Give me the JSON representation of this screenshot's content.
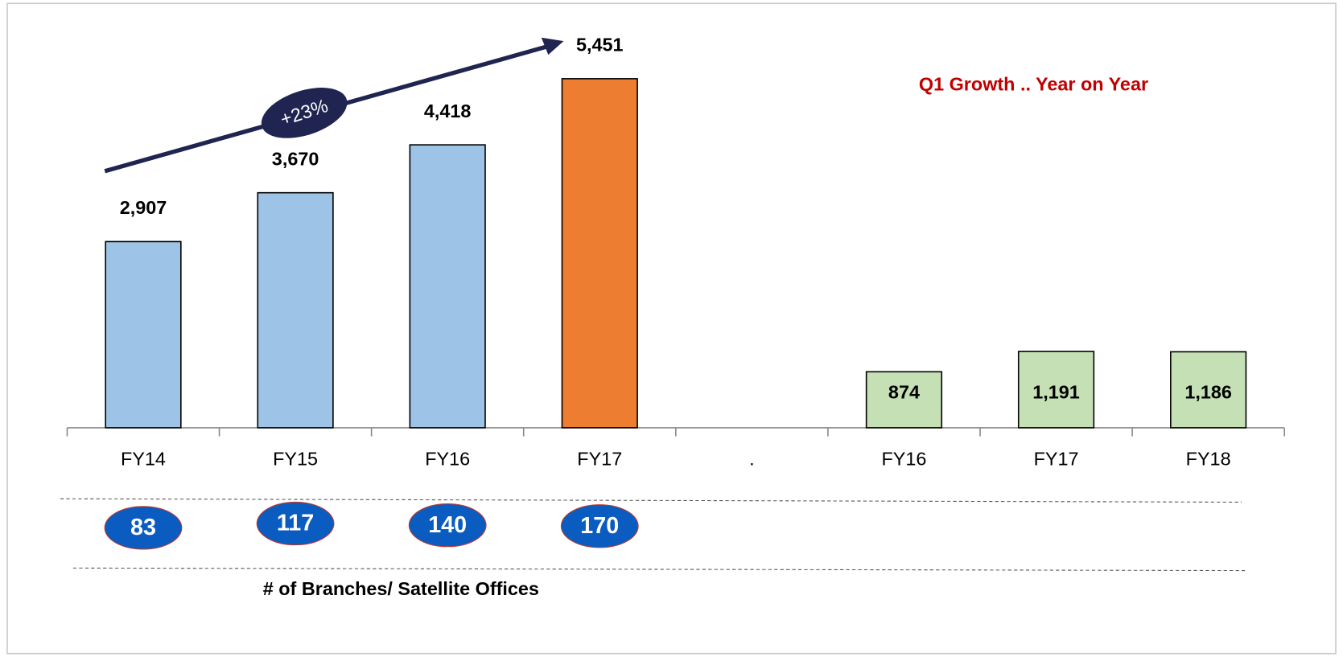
{
  "chart_data": {
    "type": "bar",
    "title": "Q1 Growth .. Year on Year",
    "annotation": "+23%",
    "categories": [
      "FY14",
      "FY15",
      "FY16",
      "FY17",
      ".",
      "FY16",
      "FY17",
      "FY18"
    ],
    "values": [
      2907,
      3670,
      4418,
      5451,
      null,
      874,
      1191,
      1186
    ],
    "value_labels": [
      "2,907",
      "3,670",
      "4,418",
      "5,451",
      null,
      "874",
      "1,191",
      "1,186"
    ],
    "colors": [
      "#9dc3e6",
      "#9dc3e6",
      "#9dc3e6",
      "#ed7d31",
      null,
      "#c5e0b4",
      "#c5e0b4",
      "#c5e0b4"
    ],
    "ylim": [
      0,
      6000
    ],
    "branches": {
      "label": "# of Branches/ Satellite Offices",
      "values": [
        83,
        117,
        140,
        170
      ]
    }
  }
}
